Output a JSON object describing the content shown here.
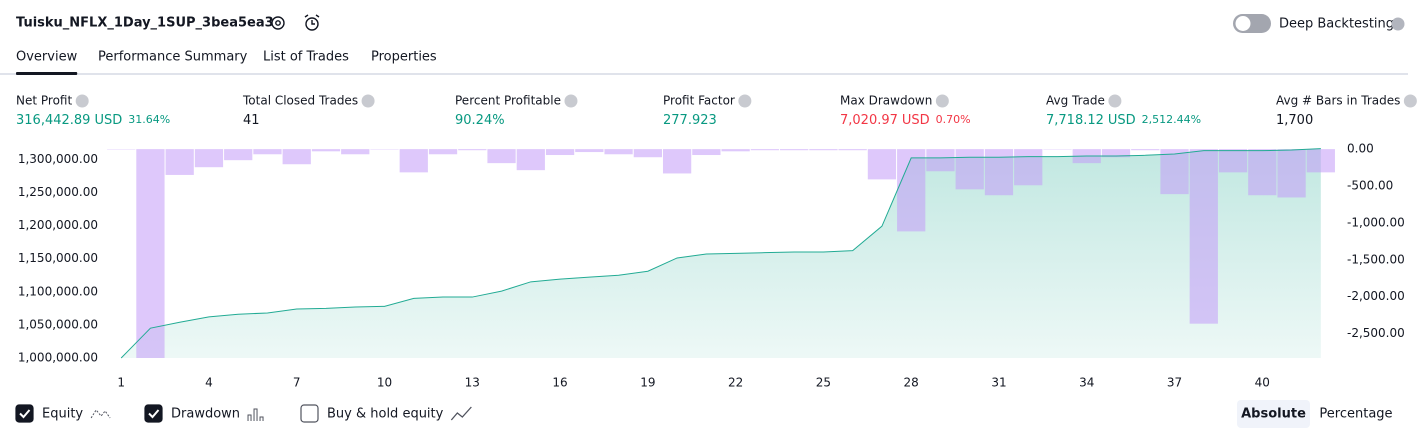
{
  "header": {
    "title": "Tuisku_NFLX_1Day_1SUP_3bea5ea3",
    "toggle_label": "Deep Backtesting",
    "toggle_on": false
  },
  "tabs": {
    "items": [
      "Overview",
      "Performance Summary",
      "List of Trades",
      "Properties"
    ],
    "active_index": 0
  },
  "metrics": [
    {
      "label": "Net Profit",
      "value": "316,442.89",
      "unit": "USD",
      "extra": "31.64%",
      "color": "#089981"
    },
    {
      "label": "Total Closed Trades",
      "value": "41",
      "color": "#131722"
    },
    {
      "label": "Percent Profitable",
      "value": "90.24%",
      "color": "#089981"
    },
    {
      "label": "Profit Factor",
      "value": "277.923",
      "color": "#089981"
    },
    {
      "label": "Max Drawdown",
      "value": "7,020.97",
      "unit": "USD",
      "extra": "0.70%",
      "color": "#f23645"
    },
    {
      "label": "Avg Trade",
      "value": "7,718.12",
      "unit": "USD",
      "extra": "2,512.44%",
      "color": "#089981"
    },
    {
      "label": "Avg # Bars in Trades",
      "value": "1,700",
      "color": "#131722"
    }
  ],
  "chart_data": {
    "type": "combo",
    "x": [
      1,
      2,
      3,
      4,
      5,
      6,
      7,
      8,
      9,
      10,
      11,
      12,
      13,
      14,
      15,
      16,
      17,
      18,
      19,
      20,
      21,
      22,
      23,
      24,
      25,
      26,
      27,
      28,
      29,
      30,
      31,
      32,
      33,
      34,
      35,
      36,
      37,
      38,
      39,
      40,
      41,
      42
    ],
    "xlim": [
      0.55,
      42.45
    ],
    "xticks": [
      1,
      4,
      7,
      10,
      13,
      16,
      19,
      22,
      25,
      28,
      31,
      34,
      37,
      40
    ],
    "ylim": [
      1000000,
      1317000
    ],
    "yticks": [
      {
        "value": 1000000,
        "label": "1,000,000.00"
      },
      {
        "value": 1050000,
        "label": "1,050,000.00"
      },
      {
        "value": 1100000,
        "label": "1,100,000.00"
      },
      {
        "value": 1150000,
        "label": "1,150,000.00"
      },
      {
        "value": 1200000,
        "label": "1,200,000.00"
      },
      {
        "value": 1250000,
        "label": "1,250,000.00"
      },
      {
        "value": 1300000,
        "label": "1,300,000.00"
      }
    ],
    "y2lim": [
      -2830,
      15
    ],
    "y2ticks": [
      {
        "value": 0,
        "label": "0.00"
      },
      {
        "value": -500,
        "label": "-500.00"
      },
      {
        "value": -1000,
        "label": "-1,000.00"
      },
      {
        "value": -1500,
        "label": "-1,500.00"
      },
      {
        "value": -2000,
        "label": "-2,000.00"
      },
      {
        "value": -2500,
        "label": "-2,500.00"
      }
    ],
    "grid": false,
    "series": [
      {
        "name": "Equity",
        "type": "area",
        "color": "#22ab94",
        "visible": true,
        "values": [
          1000000,
          1045000,
          1054000,
          1062000,
          1066000,
          1068000,
          1074000,
          1075000,
          1077000,
          1078000,
          1090000,
          1092000,
          1092000,
          1101000,
          1115000,
          1119000,
          1122000,
          1125000,
          1131000,
          1151000,
          1157000,
          1158000,
          1159000,
          1160000,
          1160000,
          1162000,
          1199000,
          1302000,
          1302000,
          1303000,
          1303000,
          1304000,
          1304000,
          1305000,
          1305000,
          1306000,
          1308000,
          1313000,
          1313000,
          1313000,
          1314000,
          1316000
        ]
      },
      {
        "name": "Drawdown",
        "type": "bar",
        "axis": "y2",
        "color": "#c39bf7",
        "visible": true,
        "values": [
          -5,
          -2830,
          -350,
          -245,
          -150,
          -70,
          -205,
          -30,
          -70,
          -5,
          -315,
          -70,
          -15,
          -190,
          -285,
          -80,
          -40,
          -70,
          -110,
          -330,
          -80,
          -30,
          -15,
          -15,
          -15,
          -15,
          -410,
          -1115,
          -300,
          -545,
          -625,
          -490,
          -5,
          -190,
          -110,
          -15,
          -610,
          -2365,
          -315,
          -625,
          -655,
          -315
        ]
      }
    ]
  },
  "footer": {
    "buy_hold": {
      "name": "Buy & hold equity",
      "visible": false
    },
    "modes": [
      "Absolute",
      "Percentage"
    ],
    "active_mode": 0
  }
}
